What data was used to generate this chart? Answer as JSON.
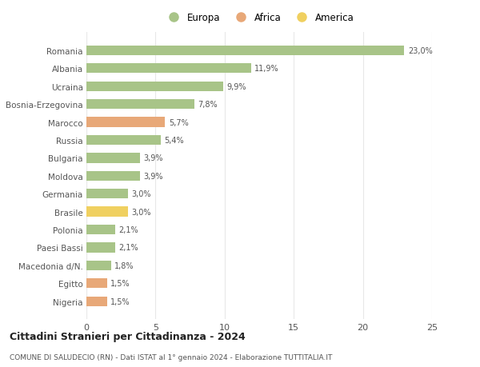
{
  "countries": [
    "Romania",
    "Albania",
    "Ucraina",
    "Bosnia-Erzegovina",
    "Marocco",
    "Russia",
    "Bulgaria",
    "Moldova",
    "Germania",
    "Brasile",
    "Polonia",
    "Paesi Bassi",
    "Macedonia d/N.",
    "Egitto",
    "Nigeria"
  ],
  "values": [
    23.0,
    11.9,
    9.9,
    7.8,
    5.7,
    5.4,
    3.9,
    3.9,
    3.0,
    3.0,
    2.1,
    2.1,
    1.8,
    1.5,
    1.5
  ],
  "labels": [
    "23,0%",
    "11,9%",
    "9,9%",
    "7,8%",
    "5,7%",
    "5,4%",
    "3,9%",
    "3,9%",
    "3,0%",
    "3,0%",
    "2,1%",
    "2,1%",
    "1,8%",
    "1,5%",
    "1,5%"
  ],
  "colors": [
    "#a8c488",
    "#a8c488",
    "#a8c488",
    "#a8c488",
    "#e8a878",
    "#a8c488",
    "#a8c488",
    "#a8c488",
    "#a8c488",
    "#f0d060",
    "#a8c488",
    "#a8c488",
    "#a8c488",
    "#e8a878",
    "#e8a878"
  ],
  "legend_labels": [
    "Europa",
    "Africa",
    "America"
  ],
  "legend_colors": [
    "#a8c488",
    "#e8a878",
    "#f0d060"
  ],
  "title1": "Cittadini Stranieri per Cittadinanza - 2024",
  "title2": "COMUNE DI SALUDECIO (RN) - Dati ISTAT al 1° gennaio 2024 - Elaborazione TUTTITALIA.IT",
  "xlim": [
    0,
    25
  ],
  "xticks": [
    0,
    5,
    10,
    15,
    20,
    25
  ],
  "bg_color": "#ffffff",
  "grid_color": "#e8e8e8"
}
